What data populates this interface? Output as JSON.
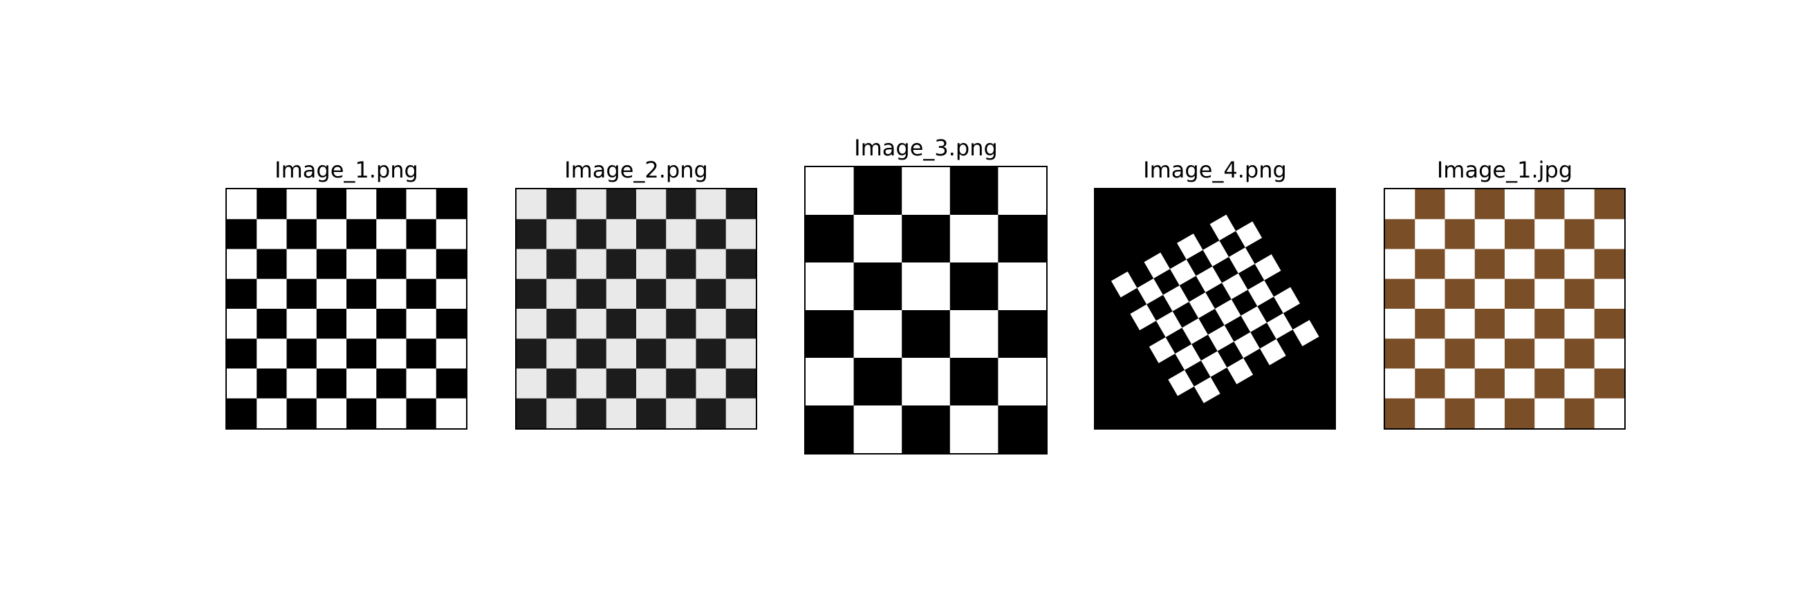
{
  "figure": {
    "panels": [
      {
        "title": "Image_1.png",
        "image": {
          "kind": "checkerboard",
          "rows": 8,
          "cols": 8,
          "dark_color": "#000000",
          "light_color": "#ffffff",
          "top_left": "light",
          "noise": false,
          "rotation_deg": 0
        }
      },
      {
        "title": "Image_2.png",
        "image": {
          "kind": "checkerboard",
          "rows": 8,
          "cols": 8,
          "dark_color": "#1a1a1a",
          "light_color": "#e8e8e8",
          "top_left": "light",
          "noise": true,
          "rotation_deg": 0
        }
      },
      {
        "title": "Image_3.png",
        "image": {
          "kind": "checkerboard",
          "rows": 6,
          "cols": 5,
          "dark_color": "#000000",
          "light_color": "#ffffff",
          "top_left": "light",
          "noise": false,
          "rotation_deg": 0
        }
      },
      {
        "title": "Image_4.png",
        "image": {
          "kind": "checkerboard",
          "rows": 8,
          "cols": 8,
          "dark_color": "#000000",
          "light_color": "#ffffff",
          "top_left": "light",
          "noise": false,
          "rotation_deg": -30,
          "background_color": "#000000"
        }
      },
      {
        "title": "Image_1.jpg",
        "image": {
          "kind": "checkerboard",
          "rows": 8,
          "cols": 8,
          "dark_color": "#7a4f28",
          "light_color": "#ffffff",
          "top_left": "light",
          "noise": false,
          "rotation_deg": 0
        }
      }
    ]
  }
}
